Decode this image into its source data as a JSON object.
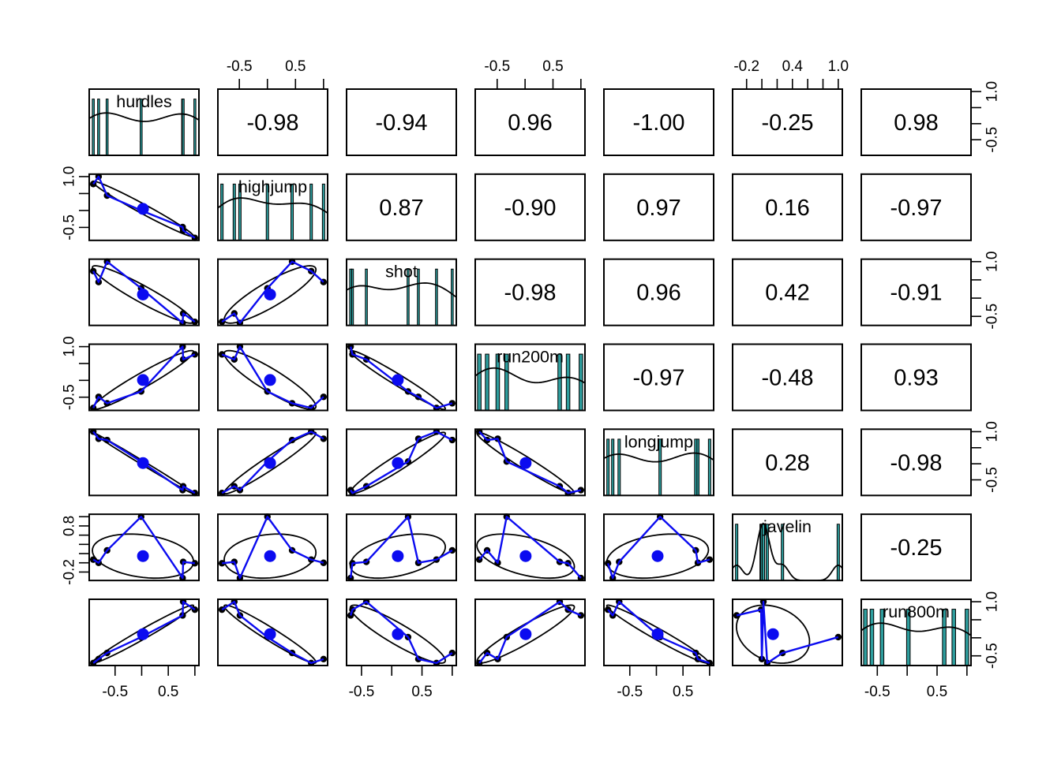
{
  "colors": {
    "background": "#ffffff",
    "panel_border": "#000000",
    "point": "#000000",
    "ellipse": "#000000",
    "density_curve": "#000000",
    "smooth_line": "#0b0bf0",
    "centroid_dot": "#0b0bf0",
    "hist_fill": "#2e9e9e",
    "text": "#000000"
  },
  "chart_data": {
    "type": "scatter",
    "subtype": "scatterplot-matrix-pairs",
    "title": "",
    "grid": [
      7,
      7
    ],
    "points_per_panel": 7,
    "diagonal_content": "variable name, histogram rug bars, density curve",
    "lower_triangle_content": "scatter points, correlation ellipse, smooth line, centroid dot",
    "upper_triangle_content": "correlation value",
    "variables": [
      {
        "name": "hurdles",
        "values": [
          1.0,
          -0.81,
          -0.65,
          0.77,
          -0.91,
          -0.01,
          0.78
        ],
        "tick_step": 0.5,
        "h_tick_labels": [
          {
            "v": -0.5,
            "t": "-0.5"
          },
          {
            "v": 0.5,
            "t": "0.5"
          }
        ],
        "v_tick_labels": [
          {
            "v": 1.0,
            "t": "1.0"
          },
          {
            "v": -0.5,
            "t": "-0.5"
          }
        ]
      },
      {
        "name": "highjump",
        "values": [
          -0.81,
          1.0,
          0.44,
          -0.49,
          0.78,
          0.0,
          -0.59
        ],
        "tick_step": 0.5,
        "h_tick_labels": [
          {
            "v": -0.5,
            "t": "-0.5"
          },
          {
            "v": 0.5,
            "t": "0.5"
          }
        ],
        "v_tick_labels": [
          {
            "v": 1.0,
            "t": "1.0"
          },
          {
            "v": -0.5,
            "t": "-0.5"
          }
        ]
      },
      {
        "name": "shot",
        "values": [
          -0.65,
          0.44,
          1.0,
          -0.68,
          0.74,
          0.27,
          -0.42
        ],
        "tick_step": 0.5,
        "h_tick_labels": [
          {
            "v": -0.5,
            "t": "-0.5"
          },
          {
            "v": 0.5,
            "t": "0.5"
          }
        ],
        "v_tick_labels": [
          {
            "v": 1.0,
            "t": "1.0"
          },
          {
            "v": -0.5,
            "t": "-0.5"
          }
        ]
      },
      {
        "name": "run200m",
        "values": [
          0.77,
          -0.49,
          -0.68,
          1.0,
          -0.82,
          -0.33,
          0.62
        ],
        "tick_step": 0.5,
        "h_tick_labels": [
          {
            "v": -0.5,
            "t": "-0.5"
          },
          {
            "v": 0.5,
            "t": "0.5"
          }
        ],
        "v_tick_labels": [
          {
            "v": 1.0,
            "t": "1.0"
          },
          {
            "v": -0.5,
            "t": "-0.5"
          }
        ]
      },
      {
        "name": "longjump",
        "values": [
          -0.91,
          0.78,
          0.74,
          -0.82,
          1.0,
          0.07,
          -0.7
        ],
        "tick_step": 0.5,
        "h_tick_labels": [
          {
            "v": -0.5,
            "t": "-0.5"
          },
          {
            "v": 0.5,
            "t": "0.5"
          }
        ],
        "v_tick_labels": [
          {
            "v": 1.0,
            "t": "1.0"
          },
          {
            "v": -0.5,
            "t": "-0.5"
          }
        ]
      },
      {
        "name": "javelin",
        "values": [
          -0.01,
          0.0,
          0.27,
          -0.33,
          0.07,
          1.0,
          0.02
        ],
        "tick_step": 0.2,
        "h_tick_labels": [
          {
            "v": -0.2,
            "t": "-0.2"
          },
          {
            "v": 0.4,
            "t": "0.4"
          },
          {
            "v": 1.0,
            "t": "1.0"
          }
        ],
        "v_tick_labels": [
          {
            "v": 0.8,
            "t": "0.8"
          },
          {
            "v": -0.2,
            "t": "-0.2"
          }
        ]
      },
      {
        "name": "run800m",
        "values": [
          0.78,
          -0.59,
          -0.42,
          0.62,
          -0.7,
          0.02,
          1.0
        ],
        "tick_step": 0.5,
        "h_tick_labels": [
          {
            "v": -0.5,
            "t": "-0.5"
          },
          {
            "v": 0.5,
            "t": "0.5"
          }
        ],
        "v_tick_labels": [
          {
            "v": 1.0,
            "t": "1.0"
          },
          {
            "v": -0.5,
            "t": "-0.5"
          }
        ]
      }
    ],
    "upper_triangle_correlations": [
      [
        "-0.98",
        "-0.94",
        "0.96",
        "-1.00",
        "-0.25",
        "0.98"
      ],
      [
        "0.87",
        "-0.90",
        "0.97",
        "0.16",
        "-0.97"
      ],
      [
        "-0.98",
        "0.96",
        "0.42",
        "-0.91"
      ],
      [
        "-0.97",
        "-0.48",
        "0.93"
      ],
      [
        "0.28",
        "-0.98"
      ],
      [
        "-0.25"
      ]
    ],
    "axis_sides": {
      "top_axis_columns": [
        2,
        4,
        6
      ],
      "bottom_axis_columns": [
        1,
        3,
        5,
        7
      ],
      "left_axis_rows": [
        2,
        4,
        6
      ],
      "right_axis_rows": [
        1,
        3,
        5,
        7
      ]
    }
  }
}
